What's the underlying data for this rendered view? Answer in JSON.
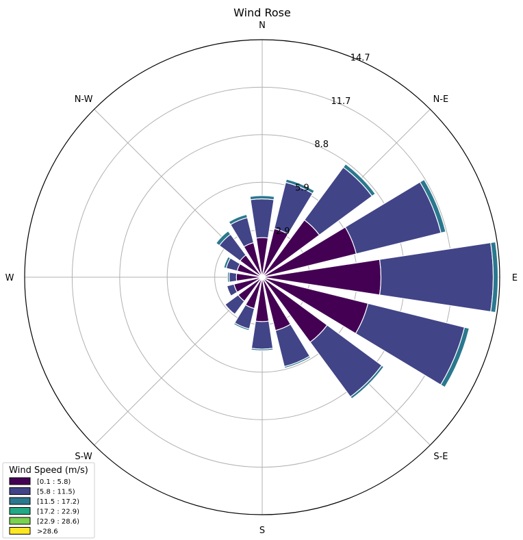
{
  "chart_data": {
    "type": "windrose",
    "title": "Wind Rose",
    "direction_labels": [
      "N",
      "N-E",
      "E",
      "S-E",
      "S",
      "S-W",
      "W",
      "N-W"
    ],
    "directions_deg": [
      0,
      22.5,
      45,
      67.5,
      90,
      112.5,
      135,
      157.5,
      180,
      202.5,
      225,
      247.5,
      270,
      292.5,
      315,
      337.5
    ],
    "radial_ticks": [
      "2.9",
      "5.9",
      "8.8",
      "11.7",
      "14.7"
    ],
    "radial_tick_values": [
      2.94,
      5.88,
      8.82,
      11.76,
      14.7
    ],
    "rmax": 14.7,
    "grid": true,
    "legend": {
      "title": "Wind Speed (m/s)",
      "placement": "lower-left",
      "entries": [
        "[0.1 : 5.8)",
        "[5.8 : 11.5)",
        "[11.5 : 17.2)",
        "[17.2 : 22.9)",
        "[22.9 : 28.6)",
        ">28.6"
      ]
    },
    "colors": [
      "#440154",
      "#414487",
      "#2a788e",
      "#22a884",
      "#7ad151",
      "#fde725"
    ],
    "series": [
      {
        "name": "[0.1 : 5.8)",
        "values": [
          2.45,
          3.1,
          4.4,
          6.0,
          7.35,
          6.75,
          5.0,
          3.4,
          2.75,
          2.0,
          1.85,
          1.8,
          1.6,
          1.6,
          1.7,
          2.2
        ]
      },
      {
        "name": "[5.8 : 11.5)",
        "values": [
          2.4,
          2.95,
          4.05,
          5.4,
          6.95,
          6.15,
          4.2,
          2.3,
          1.7,
          1.3,
          1.0,
          0.45,
          0.45,
          0.7,
          1.6,
          1.6
        ]
      },
      {
        "name": "[11.5 : 17.2)",
        "values": [
          0.2,
          0.2,
          0.25,
          0.3,
          0.3,
          0.3,
          0.15,
          0.1,
          0.1,
          0.1,
          0.0,
          0.0,
          0.1,
          0.15,
          0.25,
          0.2
        ]
      },
      {
        "name": "[17.2 : 22.9)",
        "values": [
          0,
          0,
          0,
          0,
          0,
          0,
          0,
          0,
          0,
          0,
          0,
          0,
          0,
          0,
          0,
          0
        ]
      },
      {
        "name": "[22.9 : 28.6)",
        "values": [
          0,
          0,
          0,
          0,
          0,
          0,
          0,
          0,
          0,
          0,
          0,
          0,
          0,
          0,
          0,
          0
        ]
      },
      {
        "name": ">28.6",
        "values": [
          0,
          0,
          0,
          0,
          0,
          0,
          0,
          0,
          0,
          0,
          0,
          0,
          0,
          0,
          0,
          0
        ]
      }
    ]
  }
}
